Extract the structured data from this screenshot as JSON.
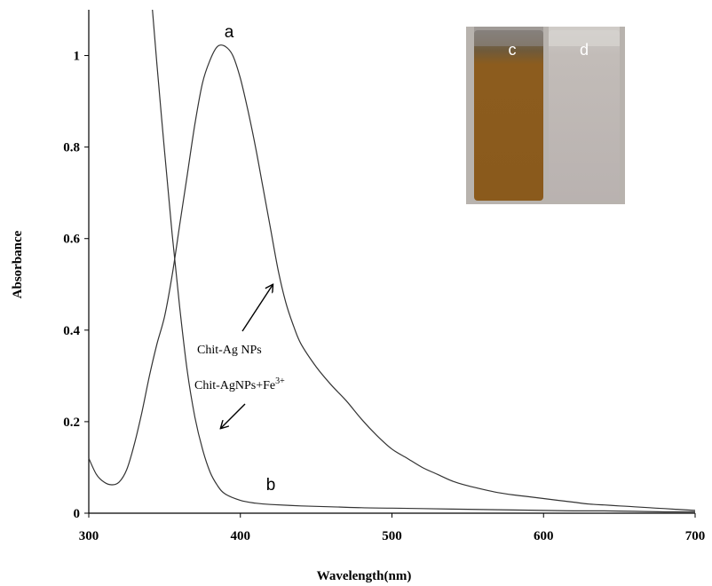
{
  "chart_data": {
    "type": "line",
    "xlabel": "Wavelength(nm)",
    "ylabel": "Absorbance",
    "xlim": [
      300,
      700
    ],
    "ylim": [
      0,
      1.1
    ],
    "x_ticks": [
      300,
      400,
      500,
      600,
      700
    ],
    "y_ticks": [
      0,
      0.2,
      0.4,
      0.6,
      0.8,
      1
    ],
    "y_tick_labels": [
      "0",
      "0.2",
      "0.4",
      "0.6",
      "0.8",
      "1"
    ],
    "grid": false,
    "series": [
      {
        "name": "a",
        "color": "#333333",
        "x": [
          300,
          305,
          310,
          315,
          320,
          325,
          330,
          335,
          340,
          345,
          350,
          355,
          360,
          365,
          370,
          375,
          380,
          385,
          390,
          395,
          400,
          405,
          410,
          415,
          420,
          425,
          430,
          435,
          440,
          450,
          460,
          470,
          480,
          490,
          500,
          510,
          520,
          530,
          540,
          550,
          560,
          570,
          580,
          590,
          600,
          610,
          620,
          630,
          640,
          650,
          660,
          670,
          680,
          690,
          700
        ],
        "y": [
          0.12,
          0.085,
          0.068,
          0.062,
          0.068,
          0.095,
          0.15,
          0.22,
          0.3,
          0.37,
          0.43,
          0.52,
          0.63,
          0.74,
          0.85,
          0.94,
          0.99,
          1.02,
          1.02,
          1.0,
          0.95,
          0.88,
          0.8,
          0.71,
          0.62,
          0.53,
          0.46,
          0.41,
          0.37,
          0.32,
          0.28,
          0.245,
          0.205,
          0.17,
          0.14,
          0.12,
          0.1,
          0.085,
          0.07,
          0.06,
          0.052,
          0.045,
          0.04,
          0.036,
          0.032,
          0.028,
          0.024,
          0.02,
          0.018,
          0.016,
          0.014,
          0.012,
          0.01,
          0.008,
          0.006
        ]
      },
      {
        "name": "b",
        "color": "#333333",
        "x": [
          342,
          345,
          350,
          355,
          360,
          365,
          370,
          375,
          380,
          385,
          390,
          400,
          410,
          420,
          440,
          460,
          480,
          500,
          520,
          540,
          560,
          580,
          600,
          620,
          640,
          660,
          680,
          700
        ],
        "y": [
          1.1,
          0.98,
          0.79,
          0.61,
          0.45,
          0.31,
          0.21,
          0.14,
          0.09,
          0.06,
          0.042,
          0.028,
          0.022,
          0.019,
          0.016,
          0.014,
          0.012,
          0.011,
          0.01,
          0.009,
          0.008,
          0.007,
          0.006,
          0.005,
          0.005,
          0.004,
          0.003,
          0.003
        ]
      }
    ],
    "annotations": {
      "letter_a": "a",
      "letter_b": "b",
      "label_ag": "Chit-Ag NPs",
      "label_fe": "Chit-AgNPs+Fe",
      "label_fe_sup": "3+"
    },
    "inset": {
      "vial_c_label": "c",
      "vial_d_label": "d",
      "vial_c_color": "#8a5a1c",
      "vial_d_color": "#bdb6b4"
    }
  }
}
